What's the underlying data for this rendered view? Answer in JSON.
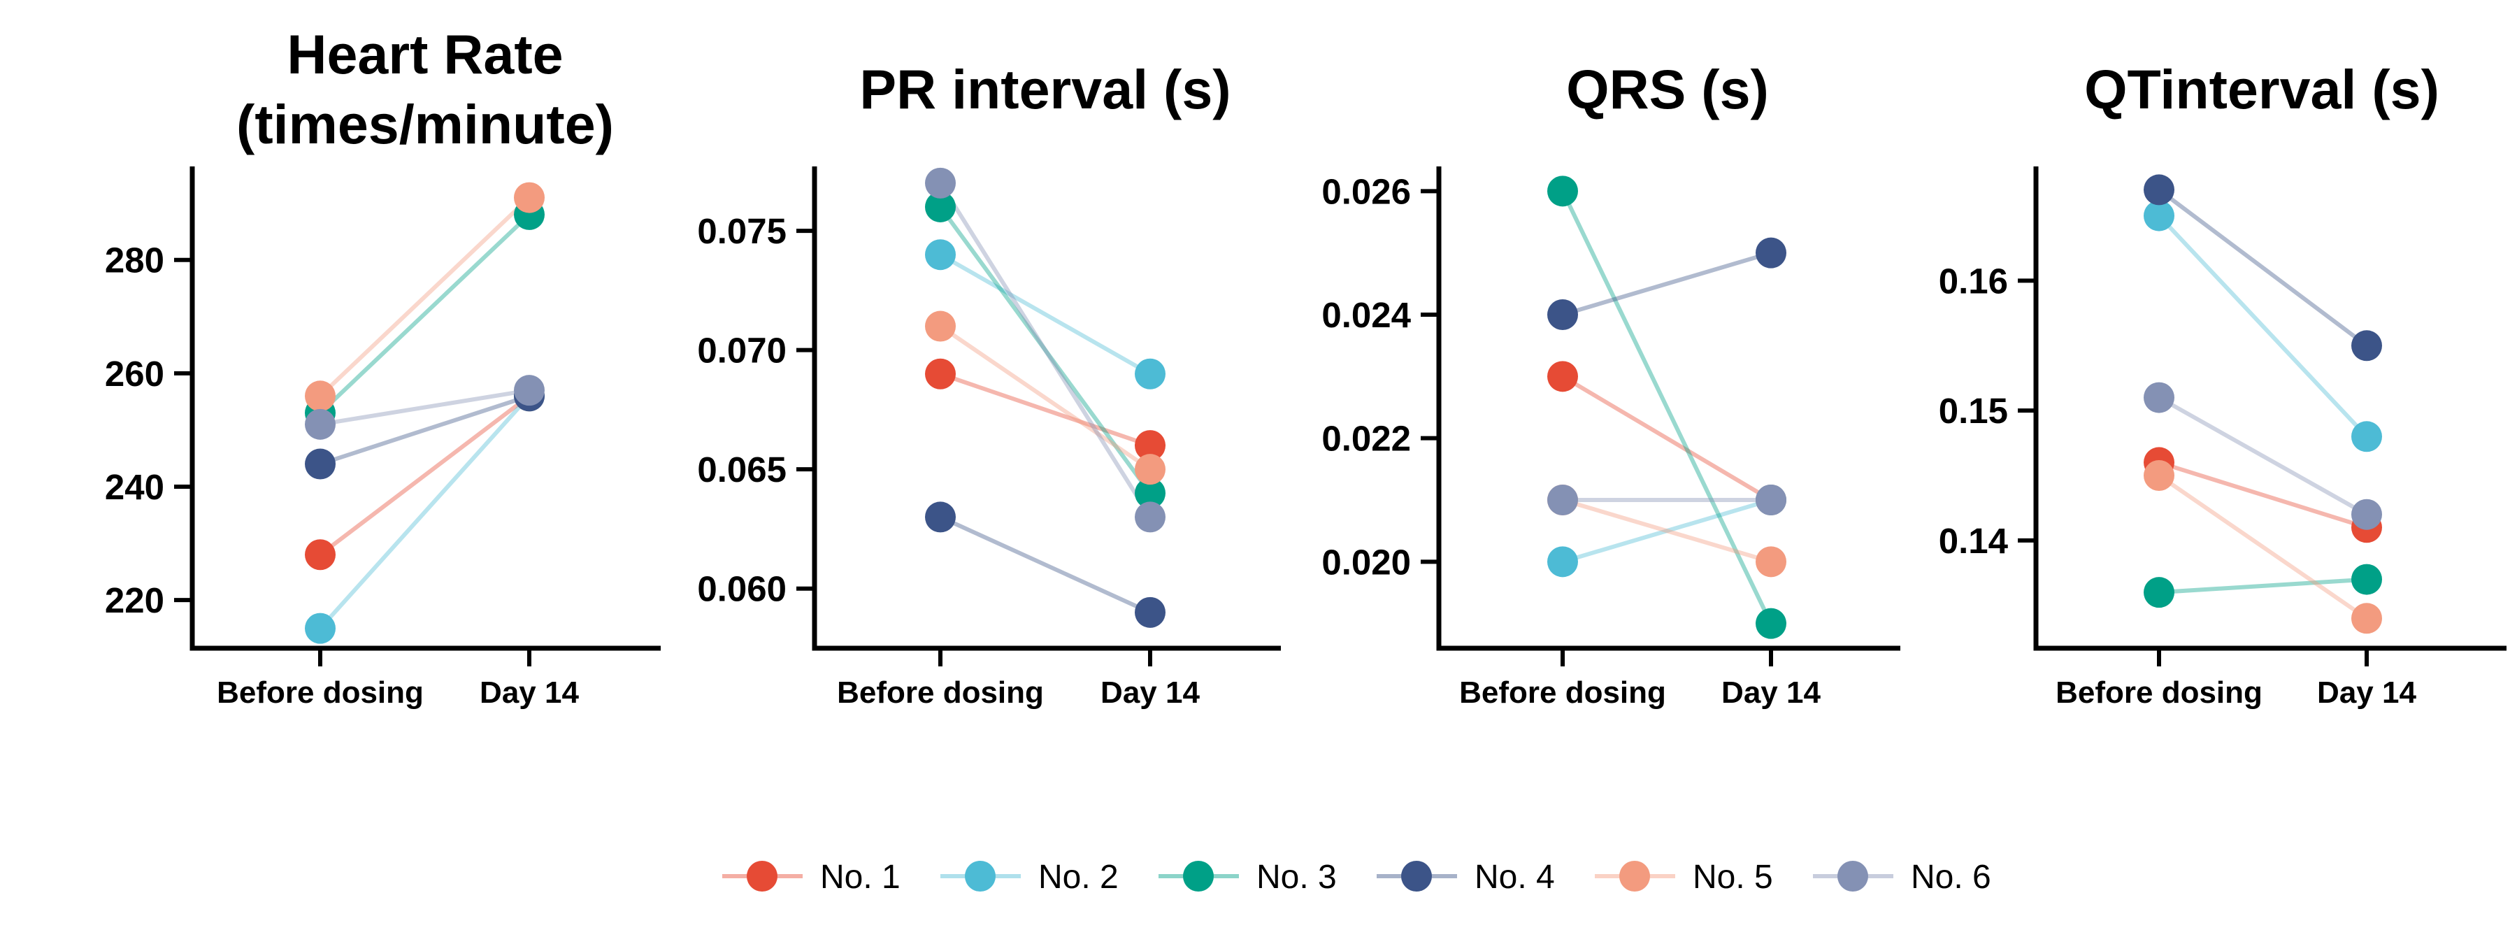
{
  "chart_data": [
    {
      "type": "line",
      "title": [
        "Heart Rate",
        "(times/minute)"
      ],
      "categories": [
        "Before dosing",
        "Day 14"
      ],
      "ylim": [
        211.5,
        296.5
      ],
      "yticks": [
        220,
        240,
        260,
        280
      ],
      "ytick_labels": [
        "220",
        "240",
        "260",
        "280"
      ],
      "grid": false,
      "series": [
        {
          "name": "No. 1",
          "values": [
            228,
            256
          ]
        },
        {
          "name": "No. 2",
          "values": [
            215,
            256
          ]
        },
        {
          "name": "No. 3",
          "values": [
            253,
            288
          ]
        },
        {
          "name": "No. 4",
          "values": [
            244,
            256
          ]
        },
        {
          "name": "No. 5",
          "values": [
            256,
            291
          ]
        },
        {
          "name": "No. 6",
          "values": [
            251,
            257
          ]
        }
      ]
    },
    {
      "type": "line",
      "title": [
        "PR interval (s)"
      ],
      "categories": [
        "Before dosing",
        "Day 14"
      ],
      "ylim": [
        0.0575,
        0.0777
      ],
      "yticks": [
        0.06,
        0.065,
        0.07,
        0.075
      ],
      "ytick_labels": [
        "0.060",
        "0.065",
        "0.070",
        "0.075"
      ],
      "grid": false,
      "series": [
        {
          "name": "No. 1",
          "values": [
            0.069,
            0.066
          ]
        },
        {
          "name": "No. 2",
          "values": [
            0.074,
            0.069
          ]
        },
        {
          "name": "No. 3",
          "values": [
            0.076,
            0.064
          ]
        },
        {
          "name": "No. 4",
          "values": [
            0.063,
            0.059
          ]
        },
        {
          "name": "No. 5",
          "values": [
            0.071,
            0.065
          ]
        },
        {
          "name": "No. 6",
          "values": [
            0.077,
            0.063
          ]
        }
      ]
    },
    {
      "type": "line",
      "title": [
        "QRS (s)"
      ],
      "categories": [
        "Before dosing",
        "Day 14"
      ],
      "ylim": [
        0.0186,
        0.0264
      ],
      "yticks": [
        0.02,
        0.022,
        0.024,
        0.026
      ],
      "ytick_labels": [
        "0.020",
        "0.022",
        "0.024",
        "0.026"
      ],
      "grid": false,
      "series": [
        {
          "name": "No. 1",
          "values": [
            0.023,
            0.021
          ]
        },
        {
          "name": "No. 2",
          "values": [
            0.02,
            0.021
          ]
        },
        {
          "name": "No. 3",
          "values": [
            0.026,
            0.019
          ]
        },
        {
          "name": "No. 4",
          "values": [
            0.024,
            0.025
          ]
        },
        {
          "name": "No. 5",
          "values": [
            0.021,
            0.02
          ]
        },
        {
          "name": "No. 6",
          "values": [
            0.021,
            0.021
          ]
        }
      ]
    },
    {
      "type": "line",
      "title": [
        "QTinterval (s)"
      ],
      "categories": [
        "Before dosing",
        "Day 14"
      ],
      "ylim": [
        0.1317,
        0.1688
      ],
      "yticks": [
        0.14,
        0.15,
        0.16
      ],
      "ytick_labels": [
        "0.14",
        "0.15",
        "0.16"
      ],
      "grid": false,
      "series": [
        {
          "name": "No. 1",
          "values": [
            0.146,
            0.141
          ]
        },
        {
          "name": "No. 2",
          "values": [
            0.165,
            0.148
          ]
        },
        {
          "name": "No. 3",
          "values": [
            0.136,
            0.137
          ]
        },
        {
          "name": "No. 4",
          "values": [
            0.167,
            0.155
          ]
        },
        {
          "name": "No. 5",
          "values": [
            0.145,
            0.134
          ]
        },
        {
          "name": "No. 6",
          "values": [
            0.151,
            0.142
          ]
        }
      ]
    }
  ],
  "legend": {
    "placement": "bottom",
    "items": [
      {
        "label": "No. 1",
        "color": "#E64B35"
      },
      {
        "label": "No. 2",
        "color": "#4DBBD5"
      },
      {
        "label": "No. 3",
        "color": "#00A087"
      },
      {
        "label": "No. 4",
        "color": "#3C5488"
      },
      {
        "label": "No. 5",
        "color": "#F39B7F"
      },
      {
        "label": "No. 6",
        "color": "#8491B4"
      }
    ]
  }
}
